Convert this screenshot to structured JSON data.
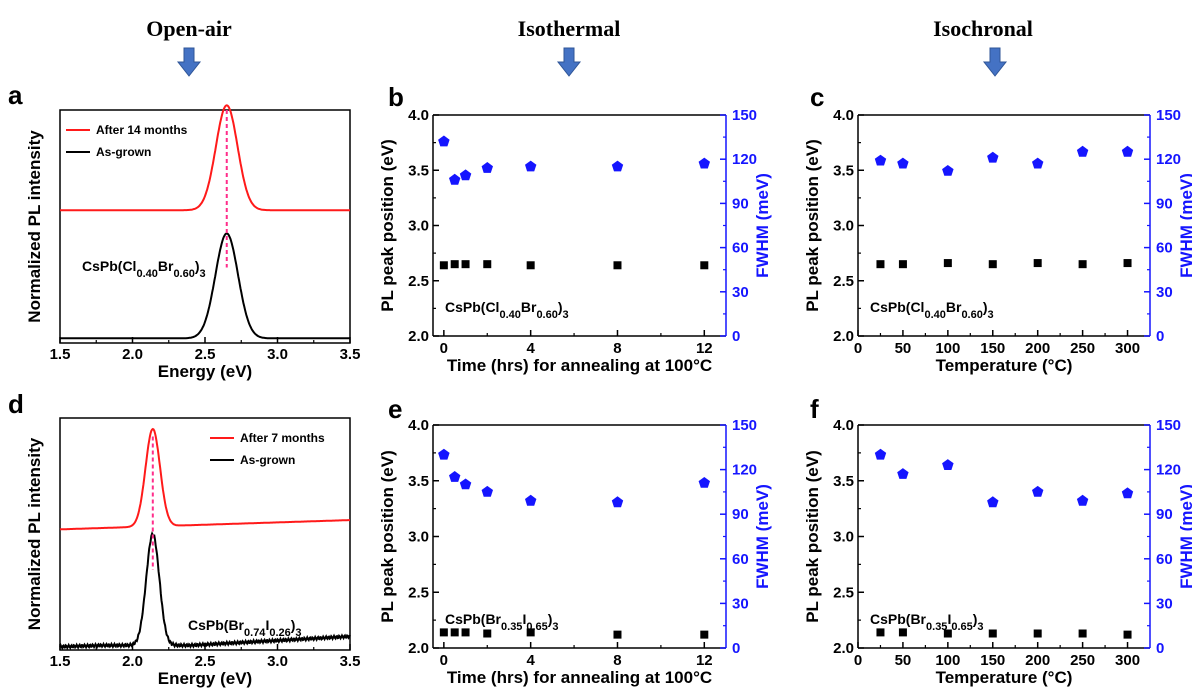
{
  "column_titles": [
    "Open-air",
    "Isothermal",
    "Isochronal"
  ],
  "colors": {
    "red": "#ff1a1a",
    "black": "#000000",
    "blue": "#1515ff",
    "dash": "#ff2d8a"
  },
  "chart_data": [
    {
      "id": "a",
      "panel_label": "a",
      "type": "line",
      "xlabel": "Energy (eV)",
      "ylabel": "Normalized PL intensity",
      "xlim": [
        1.5,
        3.5
      ],
      "xticks": [
        "1.5",
        "2.0",
        "2.5",
        "3.0",
        "3.5"
      ],
      "annotation": {
        "base": "CsPb(Cl",
        "parts": [
          [
            "0.40",
            "sub"
          ],
          [
            "Br",
            ""
          ],
          [
            "0.60",
            "sub"
          ],
          [
            ")",
            ""
          ],
          [
            "3",
            "sub"
          ]
        ]
      },
      "legend": [
        "After 14 months",
        "As-grown"
      ],
      "peak_energy": 2.65,
      "series": [
        {
          "name": "After 14 months",
          "color": "#ff1a1a",
          "center": 2.65,
          "width": 0.075,
          "height": 0.45,
          "offset": 0.55
        },
        {
          "name": "As-grown",
          "color": "#000000",
          "center": 2.65,
          "width": 0.078,
          "height": 0.45,
          "offset": 0.0
        }
      ]
    },
    {
      "id": "b",
      "panel_label": "b",
      "type": "scatter",
      "xlabel": "Time (hrs) for annealing at 100°C",
      "ylabel": "PL peak position (eV)",
      "y2label": "FWHM (meV)",
      "xlim": [
        -0.5,
        13
      ],
      "ylim": [
        2.0,
        4.0
      ],
      "y2lim": [
        0,
        150
      ],
      "xticks": [
        0,
        4,
        8,
        12
      ],
      "yticks": [
        "2.0",
        "2.5",
        "3.0",
        "3.5",
        "4.0"
      ],
      "y2ticks": [
        "0",
        "30",
        "60",
        "90",
        "120",
        "150"
      ],
      "annotation": {
        "base": "CsPb(Cl",
        "parts": [
          [
            "0.40",
            "sub"
          ],
          [
            "Br",
            ""
          ],
          [
            "0.60",
            "sub"
          ],
          [
            ")",
            ""
          ],
          [
            "3",
            "sub"
          ]
        ]
      },
      "x": [
        0,
        0.5,
        1,
        2,
        4,
        8,
        12
      ],
      "peak_ev": [
        2.64,
        2.65,
        2.65,
        2.65,
        2.64,
        2.64,
        2.64
      ],
      "fwhm_mev": [
        132,
        106,
        109,
        114,
        115,
        115,
        117
      ]
    },
    {
      "id": "c",
      "panel_label": "c",
      "type": "scatter",
      "xlabel": "Temperature (°C)",
      "ylabel": "PL peak position (eV)",
      "y2label": "FWHM (meV)",
      "xlim": [
        0,
        325
      ],
      "ylim": [
        2.0,
        4.0
      ],
      "y2lim": [
        0,
        150
      ],
      "xticks": [
        0,
        50,
        100,
        150,
        200,
        250,
        300
      ],
      "yticks": [
        "2.0",
        "2.5",
        "3.0",
        "3.5",
        "4.0"
      ],
      "y2ticks": [
        "0",
        "30",
        "60",
        "90",
        "120",
        "150"
      ],
      "annotation": {
        "base": "CsPb(Cl",
        "parts": [
          [
            "0.40",
            "sub"
          ],
          [
            "Br",
            ""
          ],
          [
            "0.60",
            "sub"
          ],
          [
            ")",
            ""
          ],
          [
            "3",
            "sub"
          ]
        ]
      },
      "x": [
        25,
        50,
        100,
        150,
        200,
        250,
        300
      ],
      "peak_ev": [
        2.65,
        2.65,
        2.66,
        2.65,
        2.66,
        2.65,
        2.66
      ],
      "fwhm_mev": [
        119,
        117,
        112,
        121,
        117,
        125,
        125
      ]
    },
    {
      "id": "d",
      "panel_label": "d",
      "type": "line",
      "xlabel": "Energy (eV)",
      "ylabel": "Normalized PL intensity",
      "xlim": [
        1.5,
        3.5
      ],
      "xticks": [
        "1.5",
        "2.0",
        "2.5",
        "3.0",
        "3.5"
      ],
      "annotation": {
        "base": "CsPb(Br",
        "parts": [
          [
            "0.74",
            "sub"
          ],
          [
            "I",
            ""
          ],
          [
            "0.26",
            "sub"
          ],
          [
            ")",
            ""
          ],
          [
            "3",
            "sub"
          ]
        ]
      },
      "legend": [
        "After 7 months",
        "As-grown"
      ],
      "peak_energy": 2.14,
      "series": [
        {
          "name": "After 7 months",
          "color": "#ff1a1a",
          "center": 2.14,
          "width": 0.05,
          "height": 0.42,
          "offset": 0.5
        },
        {
          "name": "As-grown",
          "color": "#000000",
          "center": 2.14,
          "width": 0.045,
          "height": 0.48,
          "offset": 0.0
        }
      ]
    },
    {
      "id": "e",
      "panel_label": "e",
      "type": "scatter",
      "xlabel": "Time (hrs) for annealing at 100°C",
      "ylabel": "PL peak position (eV)",
      "y2label": "FWHM (meV)",
      "xlim": [
        -0.5,
        13
      ],
      "ylim": [
        2.0,
        4.0
      ],
      "y2lim": [
        0,
        150
      ],
      "xticks": [
        0,
        4,
        8,
        12
      ],
      "yticks": [
        "2.0",
        "2.5",
        "3.0",
        "3.5",
        "4.0"
      ],
      "y2ticks": [
        "0",
        "30",
        "60",
        "90",
        "120",
        "150"
      ],
      "annotation": {
        "base": "CsPb(Br",
        "parts": [
          [
            "0.35",
            "sub"
          ],
          [
            "I",
            ""
          ],
          [
            "0.65",
            "sub"
          ],
          [
            ")",
            ""
          ],
          [
            "3",
            "sub"
          ]
        ]
      },
      "x": [
        0,
        0.5,
        1,
        2,
        4,
        8,
        12
      ],
      "peak_ev": [
        2.14,
        2.14,
        2.14,
        2.13,
        2.14,
        2.12,
        2.12
      ],
      "fwhm_mev": [
        130,
        115,
        110,
        105,
        99,
        98,
        111
      ]
    },
    {
      "id": "f",
      "panel_label": "f",
      "type": "scatter",
      "xlabel": "Temperature (°C)",
      "ylabel": "PL peak position (eV)",
      "y2label": "FWHM (meV)",
      "xlim": [
        0,
        325
      ],
      "ylim": [
        2.0,
        4.0
      ],
      "y2lim": [
        0,
        150
      ],
      "xticks": [
        0,
        50,
        100,
        150,
        200,
        250,
        300
      ],
      "yticks": [
        "2.0",
        "2.5",
        "3.0",
        "3.5",
        "4.0"
      ],
      "y2ticks": [
        "0",
        "30",
        "60",
        "90",
        "120",
        "150"
      ],
      "annotation": {
        "base": "CsPb(Br",
        "parts": [
          [
            "0.35",
            "sub"
          ],
          [
            "I",
            ""
          ],
          [
            "0.65",
            "sub"
          ],
          [
            ")",
            ""
          ],
          [
            "3",
            "sub"
          ]
        ]
      },
      "x": [
        25,
        50,
        100,
        150,
        200,
        250,
        300
      ],
      "peak_ev": [
        2.14,
        2.14,
        2.13,
        2.13,
        2.13,
        2.13,
        2.12
      ],
      "fwhm_mev": [
        130,
        117,
        123,
        98,
        105,
        99,
        104
      ]
    }
  ]
}
